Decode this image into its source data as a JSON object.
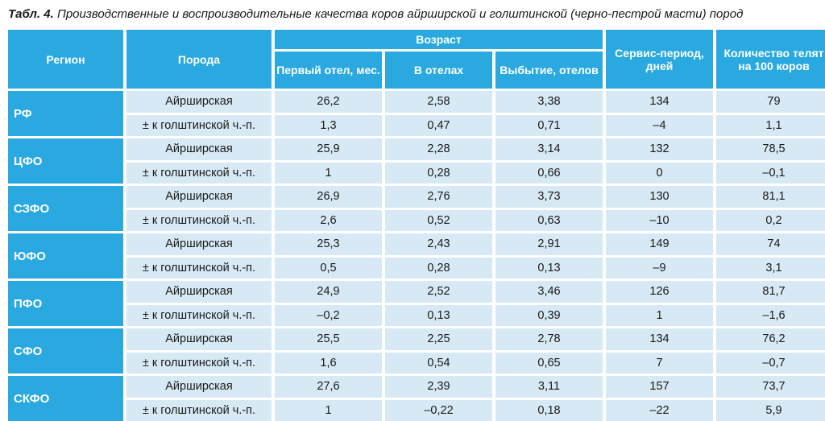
{
  "caption": {
    "label": "Табл. 4.",
    "text": "Производственные и воспроизводительные качества коров айрширской и голштинской (черно-пестрой масти) пород"
  },
  "header": {
    "region": "Регион",
    "breed": "Порода",
    "age_group": "Возраст",
    "first_calving": "Первый отел, мес.",
    "in_calvings": "В отелах",
    "culling": "Выбытие, отелов",
    "service_period": "Сервис-период, дней",
    "calves": "Количество телят на 100 коров"
  },
  "regions": [
    {
      "name": "РФ",
      "rows": [
        [
          "Айрширская",
          "26,2",
          "2,58",
          "3,38",
          "134",
          "79"
        ],
        [
          "± к голштинской ч.-п.",
          "1,3",
          "0,47",
          "0,71",
          "–4",
          "1,1"
        ]
      ]
    },
    {
      "name": "ЦФО",
      "rows": [
        [
          "Айрширская",
          "25,9",
          "2,28",
          "3,14",
          "132",
          "78,5"
        ],
        [
          "± к голштинской ч.-п.",
          "1",
          "0,28",
          "0,66",
          "0",
          "–0,1"
        ]
      ]
    },
    {
      "name": "СЗФО",
      "rows": [
        [
          "Айрширская",
          "26,9",
          "2,76",
          "3,73",
          "130",
          "81,1"
        ],
        [
          "± к голштинской ч.-п.",
          "2,6",
          "0,52",
          "0,63",
          "–10",
          "0,2"
        ]
      ]
    },
    {
      "name": "ЮФО",
      "rows": [
        [
          "Айрширская",
          "25,3",
          "2,43",
          "2,91",
          "149",
          "74"
        ],
        [
          "± к голштинской ч.-п.",
          "0,5",
          "0,28",
          "0,13",
          "–9",
          "3,1"
        ]
      ]
    },
    {
      "name": "ПФО",
      "rows": [
        [
          "Айрширская",
          "24,9",
          "2,52",
          "3,46",
          "126",
          "81,7"
        ],
        [
          "± к голштинской ч.-п.",
          "–0,2",
          "0,13",
          "0,39",
          "1",
          "–1,6"
        ]
      ]
    },
    {
      "name": "СФО",
      "rows": [
        [
          "Айрширская",
          "25,5",
          "2,25",
          "2,78",
          "134",
          "76,2"
        ],
        [
          "± к голштинской ч.-п.",
          "1,6",
          "0,54",
          "0,65",
          "7",
          "–0,7"
        ]
      ]
    },
    {
      "name": "СКФО",
      "rows": [
        [
          "Айрширская",
          "27,6",
          "2,39",
          "3,11",
          "157",
          "73,7"
        ],
        [
          "± к голштинской ч.-п.",
          "1",
          "–0,22",
          "0,18",
          "–22",
          "5,9"
        ]
      ]
    }
  ]
}
